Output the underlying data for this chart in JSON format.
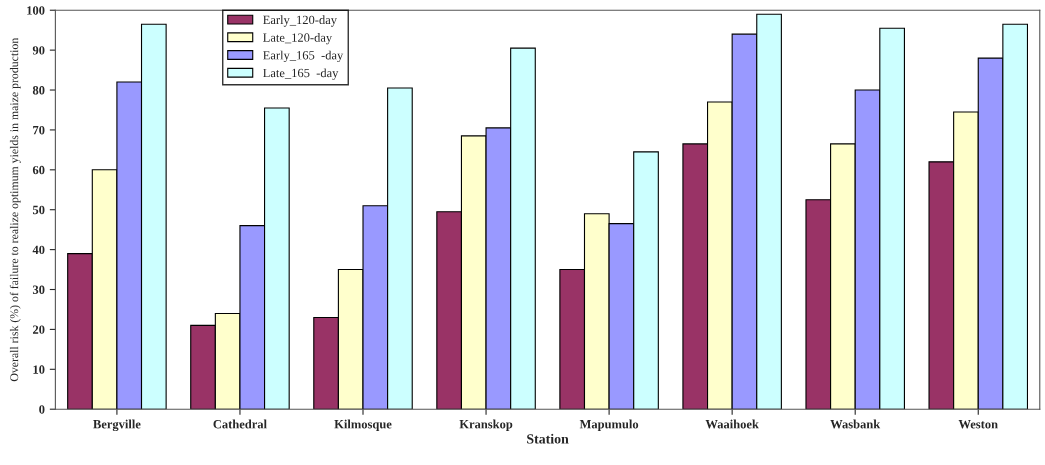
{
  "chart_data": {
    "type": "bar",
    "xlabel": "Station",
    "ylabel": "Overall risk (%) of failure to realize optimum yields in maize production",
    "categories": [
      "Bergville",
      "Cathedral",
      "Kilmosque",
      "Kranskop",
      "Mapumulo",
      "Waaihoek",
      "Wasbank",
      "Weston"
    ],
    "series": [
      {
        "name": "Early_120-day",
        "color": "#993366",
        "values": [
          39,
          21,
          23,
          49.5,
          35,
          66.5,
          52.5,
          62
        ]
      },
      {
        "name": "Late_120-day",
        "color": "#ffffcc",
        "values": [
          60,
          24,
          35,
          68.5,
          49,
          77,
          66.5,
          74.5
        ]
      },
      {
        "name": "Early_165  -day",
        "color": "#9999ff",
        "values": [
          82,
          46,
          51,
          70.5,
          46.5,
          94,
          80,
          88
        ]
      },
      {
        "name": "Late_165  -day",
        "color": "#ccffff",
        "values": [
          96.5,
          75.5,
          80.5,
          90.5,
          64.5,
          99,
          95.5,
          96.5
        ]
      }
    ],
    "ylim": [
      0,
      100
    ],
    "yticks": [
      0,
      10,
      20,
      30,
      40,
      50,
      60,
      70,
      80,
      90,
      100
    ],
    "grid": false,
    "legend": "top left"
  }
}
